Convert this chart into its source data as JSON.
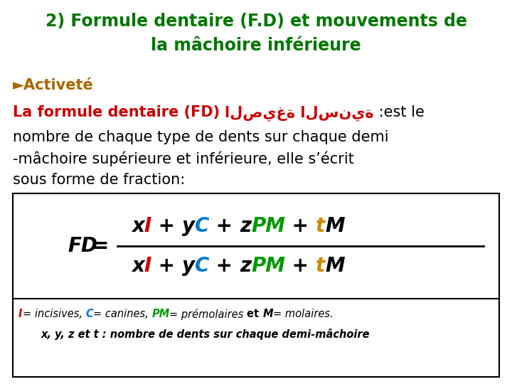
{
  "title_line1": "2) Formule dentaire (F.D) et mouvements de",
  "title_line2": "la mâchoire inférieure",
  "title_color": "#007700",
  "title_fontsize": 17,
  "arrow_text": "►Activeté",
  "activete_color": "#aa6600",
  "activete_fontsize": 15,
  "arabic_text": "الصيغة السنية",
  "arabic_color": "#cc0000",
  "line1_red": "La formule dentaire (FD) ",
  "line1_arabic": "الصيغة السنية",
  "line1_black": " :est le",
  "line1_red_color": "#cc0000",
  "line1_black_color": "#000000",
  "line1_fontsize": 15,
  "body_lines": [
    "nombre de chaque type de dents sur chaque demi",
    "-mâchoire supérieure et inférieure, elle s’écrit",
    "sous forme de fraction:"
  ],
  "body_fontsize": 15,
  "body_color": "#000000",
  "formula_fontsize": 20,
  "legend_fontsize": 10.5,
  "num_items": [
    {
      "text": "x",
      "color": "#000000",
      "style": "italic",
      "weight": "bold"
    },
    {
      "text": "I",
      "color": "#cc0000",
      "style": "italic",
      "weight": "bold"
    },
    {
      "text": " + ",
      "color": "#000000",
      "style": "normal",
      "weight": "bold"
    },
    {
      "text": "y",
      "color": "#000000",
      "style": "italic",
      "weight": "bold"
    },
    {
      "text": "C",
      "color": "#0077cc",
      "style": "italic",
      "weight": "bold"
    },
    {
      "text": " + ",
      "color": "#000000",
      "style": "normal",
      "weight": "bold"
    },
    {
      "text": "z",
      "color": "#000000",
      "style": "italic",
      "weight": "bold"
    },
    {
      "text": "PM",
      "color": "#009900",
      "style": "italic",
      "weight": "bold"
    },
    {
      "text": " + ",
      "color": "#000000",
      "style": "normal",
      "weight": "bold"
    },
    {
      "text": "t",
      "color": "#cc8800",
      "style": "italic",
      "weight": "bold"
    },
    {
      "text": "M",
      "color": "#000000",
      "style": "italic",
      "weight": "bold"
    }
  ],
  "leg1_parts": [
    {
      "text": "I",
      "color": "#cc0000",
      "style": "italic",
      "weight": "bold"
    },
    {
      "text": "= incisives, ",
      "color": "#000000",
      "style": "italic",
      "weight": "normal"
    },
    {
      "text": "C",
      "color": "#0077cc",
      "style": "italic",
      "weight": "bold"
    },
    {
      "text": "= canines, ",
      "color": "#000000",
      "style": "italic",
      "weight": "normal"
    },
    {
      "text": "PM",
      "color": "#009900",
      "style": "italic",
      "weight": "bold"
    },
    {
      "text": "= prémolaires ",
      "color": "#000000",
      "style": "italic",
      "weight": "normal"
    },
    {
      "text": "et ",
      "color": "#000000",
      "style": "normal",
      "weight": "bold"
    },
    {
      "text": "M",
      "color": "#000000",
      "style": "italic",
      "weight": "bold"
    },
    {
      "text": "= molaires.",
      "color": "#000000",
      "style": "italic",
      "weight": "normal"
    }
  ],
  "leg2_text": "x, y, z et t : nombre de dents sur chaque demi-mâchoire",
  "bg_color": "#ffffff"
}
